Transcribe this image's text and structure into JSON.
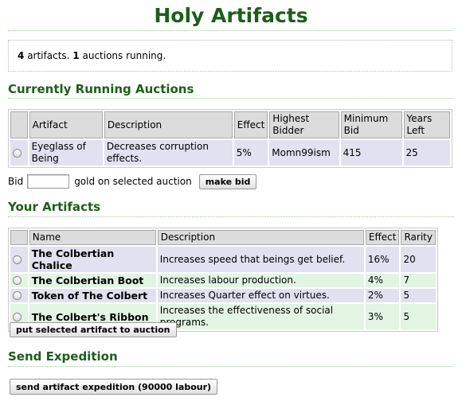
{
  "page": {
    "title": "Holy Artifacts",
    "summary": {
      "artifact_count": "4",
      "artifacts_word": "artifacts.",
      "auction_count": "1",
      "auction_word": "auctions running."
    }
  },
  "auctions": {
    "heading": "Currently Running Auctions",
    "columns": [
      "Artifact",
      "Description",
      "Effect",
      "Highest Bidder",
      "Minimum Bid",
      "Years Left"
    ],
    "rows": [
      {
        "artifact": "Eyeglass of Being",
        "description": "Decreases corruption effects.",
        "effect": "5%",
        "bidder": "Momn99ism",
        "min_bid": "415",
        "years_left": "25"
      }
    ],
    "bid_label": "Bid",
    "bid_value": "",
    "bid_suffix": "gold on selected auction",
    "bid_button": "make bid"
  },
  "artifacts": {
    "heading": "Your Artifacts",
    "columns": [
      "Name",
      "Description",
      "Effect",
      "Rarity"
    ],
    "rows": [
      {
        "name": "The Colbertian Chalice",
        "description": "Increases speed that beings get belief.",
        "effect": "16%",
        "rarity": "20"
      },
      {
        "name": "The Colbertian Boot",
        "description": "Increases labour production.",
        "effect": "4%",
        "rarity": "7"
      },
      {
        "name": "Token of The Colbert",
        "description": "Increases Quarter effect on virtues.",
        "effect": "2%",
        "rarity": "5"
      },
      {
        "name": "The Colbert's Ribbon",
        "description": "Increases the effectiveness of social programs.",
        "effect": "3%",
        "rarity": "5"
      }
    ],
    "auction_button": "put selected artifact to auction"
  },
  "expedition": {
    "heading": "Send Expedition",
    "button": "send artifact expedition (90000 labour)"
  }
}
